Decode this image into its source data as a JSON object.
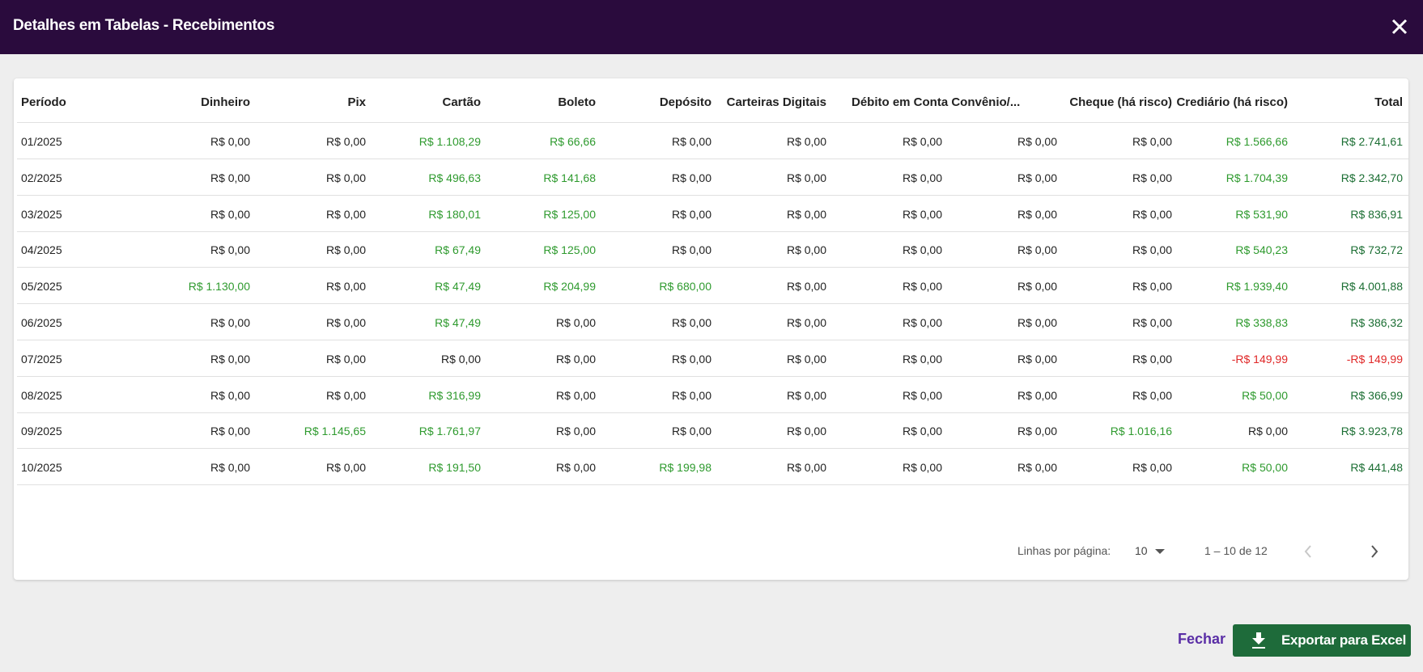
{
  "header": {
    "title": "Detalhes em Tabelas - Recebimentos"
  },
  "table": {
    "columns": [
      "Período",
      "Dinheiro",
      "Pix",
      "Cartão",
      "Boleto",
      "Depósito",
      "Carteiras Digitais",
      "Débito em Conta Convênio/...",
      null,
      "Cheque (há risco)",
      "Crediário (há risco)",
      "Total"
    ],
    "rows": [
      [
        "01/2025",
        "R$ 0,00",
        "R$ 0,00",
        "R$ 1.108,29",
        "R$ 66,66",
        "R$ 0,00",
        "R$ 0,00",
        "R$ 0,00",
        "R$ 0,00",
        "R$ 0,00",
        "R$ 1.566,66",
        "R$ 2.741,61"
      ],
      [
        "02/2025",
        "R$ 0,00",
        "R$ 0,00",
        "R$ 496,63",
        "R$ 141,68",
        "R$ 0,00",
        "R$ 0,00",
        "R$ 0,00",
        "R$ 0,00",
        "R$ 0,00",
        "R$ 1.704,39",
        "R$ 2.342,70"
      ],
      [
        "03/2025",
        "R$ 0,00",
        "R$ 0,00",
        "R$ 180,01",
        "R$ 125,00",
        "R$ 0,00",
        "R$ 0,00",
        "R$ 0,00",
        "R$ 0,00",
        "R$ 0,00",
        "R$ 531,90",
        "R$ 836,91"
      ],
      [
        "04/2025",
        "R$ 0,00",
        "R$ 0,00",
        "R$ 67,49",
        "R$ 125,00",
        "R$ 0,00",
        "R$ 0,00",
        "R$ 0,00",
        "R$ 0,00",
        "R$ 0,00",
        "R$ 540,23",
        "R$ 732,72"
      ],
      [
        "05/2025",
        "R$ 1.130,00",
        "R$ 0,00",
        "R$ 47,49",
        "R$ 204,99",
        "R$ 680,00",
        "R$ 0,00",
        "R$ 0,00",
        "R$ 0,00",
        "R$ 0,00",
        "R$ 1.939,40",
        "R$ 4.001,88"
      ],
      [
        "06/2025",
        "R$ 0,00",
        "R$ 0,00",
        "R$ 47,49",
        "R$ 0,00",
        "R$ 0,00",
        "R$ 0,00",
        "R$ 0,00",
        "R$ 0,00",
        "R$ 0,00",
        "R$ 338,83",
        "R$ 386,32"
      ],
      [
        "07/2025",
        "R$ 0,00",
        "R$ 0,00",
        "R$ 0,00",
        "R$ 0,00",
        "R$ 0,00",
        "R$ 0,00",
        "R$ 0,00",
        "R$ 0,00",
        "R$ 0,00",
        "-R$ 149,99",
        "-R$ 149,99"
      ],
      [
        "08/2025",
        "R$ 0,00",
        "R$ 0,00",
        "R$ 316,99",
        "R$ 0,00",
        "R$ 0,00",
        "R$ 0,00",
        "R$ 0,00",
        "R$ 0,00",
        "R$ 0,00",
        "R$ 50,00",
        "R$ 366,99"
      ],
      [
        "09/2025",
        "R$ 0,00",
        "R$ 1.145,65",
        "R$ 1.761,97",
        "R$ 0,00",
        "R$ 0,00",
        "R$ 0,00",
        "R$ 0,00",
        "R$ 0,00",
        "R$ 1.016,16",
        "R$ 0,00",
        "R$ 3.923,78"
      ],
      [
        "10/2025",
        "R$ 0,00",
        "R$ 0,00",
        "R$ 191,50",
        "R$ 0,00",
        "R$ 199,98",
        "R$ 0,00",
        "R$ 0,00",
        "R$ 0,00",
        "R$ 0,00",
        "R$ 50,00",
        "R$ 441,48"
      ]
    ]
  },
  "pagination": {
    "rows_per_page_label": "Linhas por página:",
    "rows_per_page": 10,
    "range": "1 – 10 de 12"
  },
  "footer": {
    "close": "Fechar",
    "export": "Exportar para Excel"
  },
  "colors": {
    "positive": "#2e9a2e",
    "total": "#1b6e33",
    "negative": "#e02828",
    "zero": "#222222"
  }
}
